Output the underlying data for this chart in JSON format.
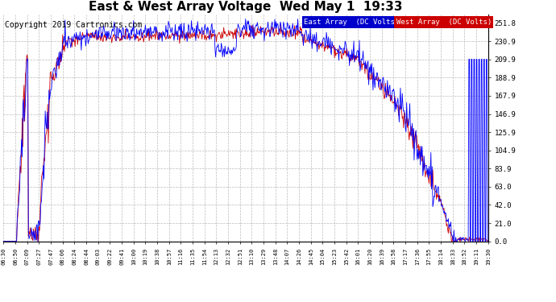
{
  "title": "East & West Array Voltage  Wed May 1  19:33",
  "copyright": "Copyright 2019 Cartronics.com",
  "legend_east": "East Array  (DC Volts)",
  "legend_west": "West Array  (DC Volts)",
  "east_color": "#0000ff",
  "west_color": "#cc0000",
  "legend_east_bg": "#0000cc",
  "legend_west_bg": "#cc0000",
  "bg_color": "#ffffff",
  "grid_color": "#bbbbbb",
  "title_fontsize": 11,
  "copyright_fontsize": 7,
  "ylabel_right_values": [
    251.8,
    230.9,
    209.9,
    188.9,
    167.9,
    146.9,
    125.9,
    104.9,
    83.9,
    63.0,
    42.0,
    21.0,
    0.0
  ],
  "ylim": [
    0.0,
    262.0
  ],
  "x_tick_labels": [
    "06:30",
    "06:50",
    "07:09",
    "07:27",
    "07:47",
    "08:06",
    "08:24",
    "08:44",
    "09:03",
    "09:22",
    "09:41",
    "10:00",
    "10:19",
    "10:38",
    "10:57",
    "11:16",
    "11:35",
    "11:54",
    "12:13",
    "12:32",
    "12:51",
    "13:10",
    "13:29",
    "13:48",
    "14:07",
    "14:26",
    "14:45",
    "15:04",
    "15:23",
    "15:42",
    "16:01",
    "16:20",
    "16:39",
    "16:58",
    "17:17",
    "17:36",
    "17:55",
    "18:14",
    "18:33",
    "18:52",
    "19:11",
    "19:30"
  ],
  "line_width": 0.6,
  "n_points": 780
}
